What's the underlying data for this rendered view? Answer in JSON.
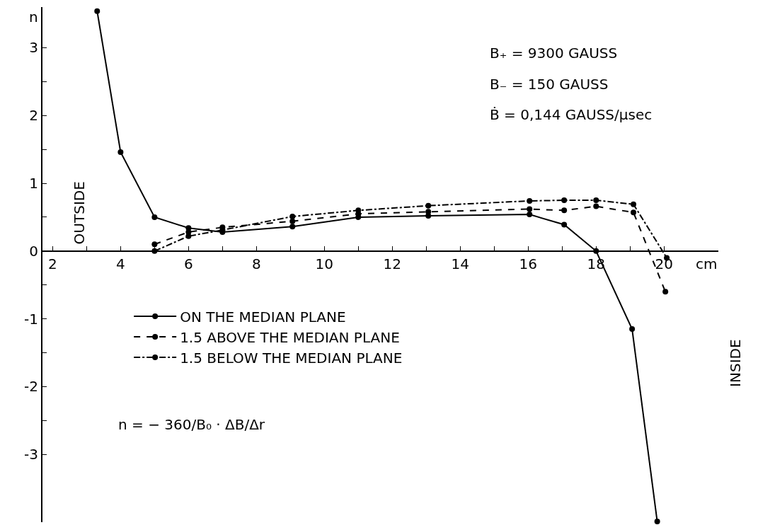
{
  "chart_data": {
    "type": "line",
    "xlabel": "cm",
    "ylabel": "n",
    "xlim": [
      1.7,
      21.6
    ],
    "ylim": [
      -4,
      3.6
    ],
    "xticks": [
      2,
      {
        "value": 3,
        "label": null
      },
      4,
      {
        "value": 5,
        "label": null
      },
      6,
      {
        "value": 7,
        "label": null
      },
      8,
      {
        "value": 9,
        "label": null
      },
      10,
      {
        "value": 11,
        "label": null
      },
      12,
      {
        "value": 13,
        "label": null
      },
      14,
      {
        "value": 15,
        "label": null
      },
      16,
      {
        "value": 17,
        "label": null
      },
      18,
      {
        "value": 19,
        "label": null
      },
      20
    ],
    "yticks": [
      -3,
      {
        "value": -2.5,
        "label": null
      },
      -2,
      {
        "value": -1.5,
        "label": null
      },
      -1,
      {
        "value": -0.5,
        "label": null
      },
      0,
      {
        "value": 0.5,
        "label": null
      },
      1,
      {
        "value": 1.5,
        "label": null
      },
      2,
      {
        "value": 2.5,
        "label": null
      },
      3
    ],
    "grid": false,
    "marker": "circle",
    "legend": "bottom left",
    "series": [
      {
        "name": "ON THE MEDIAN PLANE",
        "color": "#000000",
        "line_style": "solid",
        "x": [
          3.31,
          4,
          5,
          6,
          7,
          9.06,
          11,
          13.06,
          16.04,
          17.06,
          18,
          19.06,
          19.8
        ],
        "values": [
          3.54,
          1.46,
          0.5,
          0.34,
          0.28,
          0.36,
          0.5,
          0.52,
          0.54,
          0.39,
          0,
          -1.15,
          -3.99
        ]
      },
      {
        "name": "1.5 ABOVE THE MEDIAN PLANE",
        "color": "#000000",
        "line_style": "dashed",
        "x": [
          5,
          6,
          7,
          9.06,
          11,
          13.06,
          16.04,
          17.06,
          18,
          19.1,
          20.04
        ],
        "values": [
          0.1,
          0.28,
          0.35,
          0.44,
          0.55,
          0.58,
          0.62,
          0.6,
          0.66,
          0.57,
          -0.6
        ]
      },
      {
        "name": "1.5 BELOW THE MEDIAN PLANE",
        "color": "#000000",
        "line_style": "dashdot",
        "x": [
          5,
          6,
          7,
          9.06,
          11,
          13.06,
          16.04,
          17.06,
          18,
          19.1,
          20.08
        ],
        "values": [
          0,
          0.22,
          0.31,
          0.51,
          0.6,
          0.67,
          0.74,
          0.75,
          0.75,
          0.69,
          -0.1
        ]
      }
    ],
    "annotations": [
      "B₊ = 9300 GAUSS",
      "B₋ = 150 GAUSS",
      "Ḃ = 0,144 GAUSS/μsec",
      "OUTSIDE",
      "INSIDE",
      "n = − 360/B₀ · ΔB/Δr"
    ]
  }
}
